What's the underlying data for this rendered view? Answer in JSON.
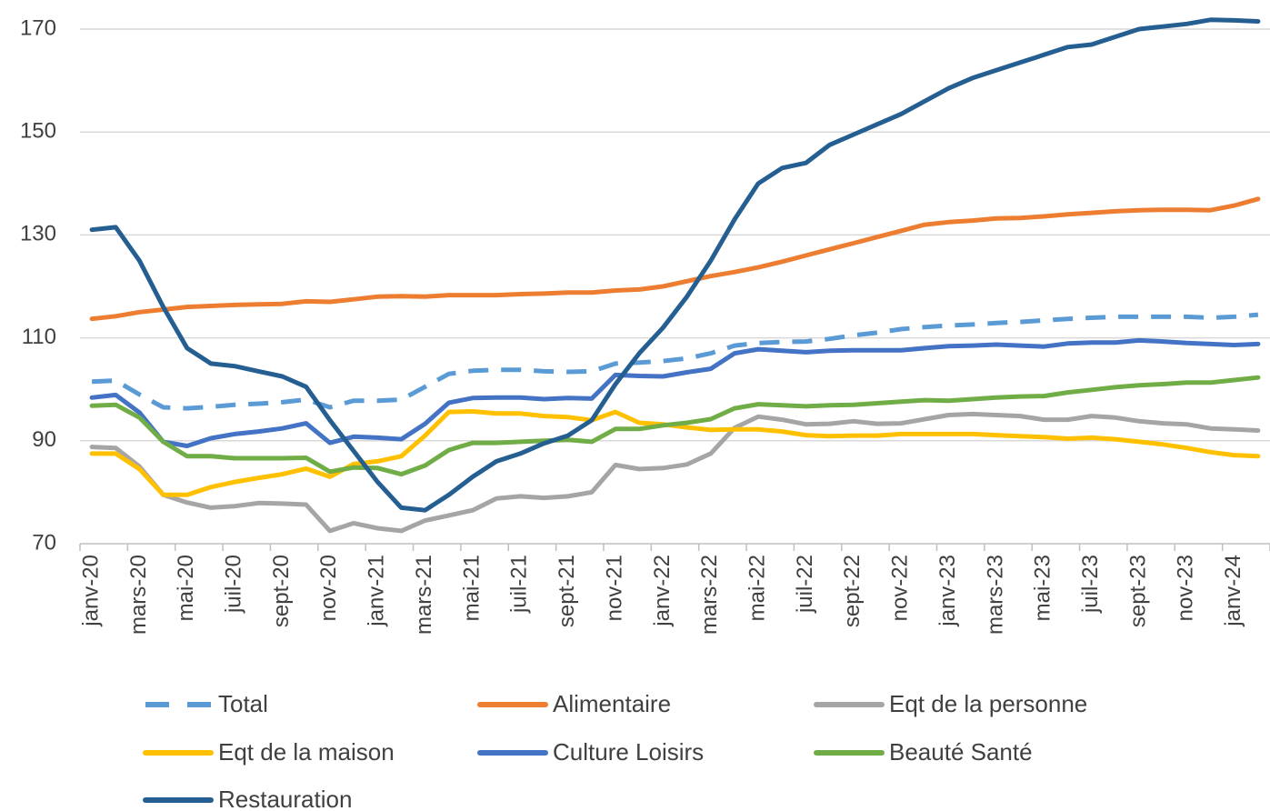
{
  "chart_data": {
    "type": "line",
    "categories": [
      "janv-20",
      null,
      "mars-20",
      null,
      "mai-20",
      null,
      "juil-20",
      null,
      "sept-20",
      null,
      "nov-20",
      null,
      "janv-21",
      null,
      "mars-21",
      null,
      "mai-21",
      null,
      "juil-21",
      null,
      "sept-21",
      null,
      "nov-21",
      null,
      "janv-22",
      null,
      "mars-22",
      null,
      "mai-22",
      null,
      "juil-22",
      null,
      "sept-22",
      null,
      "nov-22",
      null,
      "janv-23",
      null,
      "mars-23",
      null,
      "mai-23",
      null,
      "juil-23",
      null,
      "sept-23",
      null,
      "nov-23",
      null,
      "janv-24",
      null
    ],
    "ylim": [
      70,
      170
    ],
    "yticks": [
      70,
      90,
      110,
      130,
      150,
      170
    ],
    "grid": true,
    "legend": "bottom",
    "series": [
      {
        "name": "Total",
        "color": "#5b9bd5",
        "dashed": true,
        "values": [
          101.5,
          101.7,
          99,
          96.5,
          96.3,
          96.6,
          97,
          97.2,
          97.5,
          98,
          96.5,
          97.8,
          97.8,
          98,
          100.5,
          103,
          103.6,
          103.8,
          103.8,
          103.5,
          103.4,
          103.5,
          105,
          105.2,
          105.5,
          106,
          107,
          108.5,
          109,
          109.2,
          109.3,
          109.8,
          110.5,
          111,
          111.7,
          112.1,
          112.4,
          112.6,
          112.9,
          113.1,
          113.4,
          113.7,
          113.9,
          114.1,
          114.1,
          114.1,
          114.1,
          113.9,
          114.1,
          114.5
        ]
      },
      {
        "name": "Alimentaire",
        "color": "#ed7d31",
        "values": [
          113.7,
          114.2,
          115,
          115.5,
          116,
          116.2,
          116.4,
          116.5,
          116.6,
          117.1,
          117,
          117.5,
          118,
          118.1,
          118,
          118.3,
          118.3,
          118.3,
          118.5,
          118.6,
          118.8,
          118.8,
          119.2,
          119.4,
          120,
          121,
          122,
          122.8,
          123.7,
          124.8,
          126,
          127.2,
          128.4,
          129.6,
          130.8,
          132,
          132.5,
          132.8,
          133.2,
          133.3,
          133.6,
          134,
          134.3,
          134.6,
          134.8,
          134.9,
          134.9,
          134.8,
          135.7,
          137
        ]
      },
      {
        "name": "Eqt de la personne",
        "color": "#a5a5a5",
        "values": [
          88.8,
          88.6,
          85,
          79.5,
          78,
          77,
          77.3,
          77.9,
          77.8,
          77.6,
          72.5,
          74,
          73,
          72.5,
          74.5,
          75.5,
          76.5,
          78.8,
          79.2,
          78.9,
          79.2,
          80,
          85.3,
          84.5,
          84.7,
          85.4,
          87.5,
          92.5,
          94.7,
          94.1,
          93.2,
          93.3,
          93.8,
          93.3,
          93.4,
          94.2,
          95,
          95.2,
          95,
          94.8,
          94.1,
          94.1,
          94.8,
          94.5,
          93.8,
          93.4,
          93.2,
          92.4,
          92.2,
          92
        ]
      },
      {
        "name": "Eqt de la maison",
        "color": "#ffc000",
        "values": [
          87.5,
          87.5,
          84.5,
          79.5,
          79.5,
          81,
          82,
          82.8,
          83.5,
          84.6,
          83,
          85.5,
          86,
          87,
          91,
          95.6,
          95.7,
          95.3,
          95.3,
          94.8,
          94.6,
          94,
          95.6,
          93.5,
          93.2,
          92.6,
          92.1,
          92.2,
          92.2,
          91.8,
          91.1,
          90.9,
          91,
          91,
          91.3,
          91.3,
          91.3,
          91.3,
          91.1,
          90.9,
          90.7,
          90.4,
          90.6,
          90.3,
          89.8,
          89.3,
          88.6,
          87.8,
          87.2,
          87
        ]
      },
      {
        "name": "Culture Loisirs",
        "color": "#4472c4",
        "values": [
          98.4,
          98.9,
          95.5,
          89.8,
          89,
          90.5,
          91.3,
          91.8,
          92.4,
          93.4,
          89.6,
          90.8,
          90.6,
          90.3,
          93.3,
          97.4,
          98.3,
          98.4,
          98.4,
          98.1,
          98.3,
          98.2,
          102.8,
          102.6,
          102.5,
          103.3,
          104,
          107,
          107.8,
          107.5,
          107.2,
          107.5,
          107.6,
          107.6,
          107.6,
          108,
          108.4,
          108.5,
          108.7,
          108.5,
          108.3,
          108.9,
          109.1,
          109.1,
          109.5,
          109.3,
          109,
          108.8,
          108.6,
          108.8
        ]
      },
      {
        "name": "Beauté Santé",
        "color": "#70ad47",
        "values": [
          96.8,
          97,
          94.5,
          89.8,
          87,
          87,
          86.6,
          86.6,
          86.6,
          86.7,
          84,
          84.8,
          84.7,
          83.5,
          85.2,
          88.2,
          89.6,
          89.6,
          89.8,
          90,
          90.2,
          89.8,
          92.3,
          92.3,
          93,
          93.5,
          94.2,
          96.3,
          97.1,
          96.9,
          96.7,
          96.9,
          97,
          97.3,
          97.6,
          97.9,
          97.8,
          98.1,
          98.4,
          98.6,
          98.7,
          99.4,
          99.9,
          100.4,
          100.8,
          101,
          101.3,
          101.3,
          101.8,
          102.3
        ]
      },
      {
        "name": "Restauration",
        "color": "#255e91",
        "values": [
          131,
          131.5,
          125,
          116,
          108,
          105,
          104.5,
          103.5,
          102.5,
          100.5,
          94,
          88,
          82,
          77,
          76.5,
          79.5,
          83,
          86,
          87.5,
          89.5,
          91,
          94,
          101,
          107,
          112,
          118,
          125,
          133,
          140,
          143,
          144,
          147.5,
          149.5,
          151.5,
          153.5,
          156,
          158.5,
          160.5,
          162,
          163.5,
          165,
          166.5,
          167,
          168.5,
          170,
          170.5,
          171,
          171.8,
          171.7,
          171.5
        ]
      }
    ]
  }
}
